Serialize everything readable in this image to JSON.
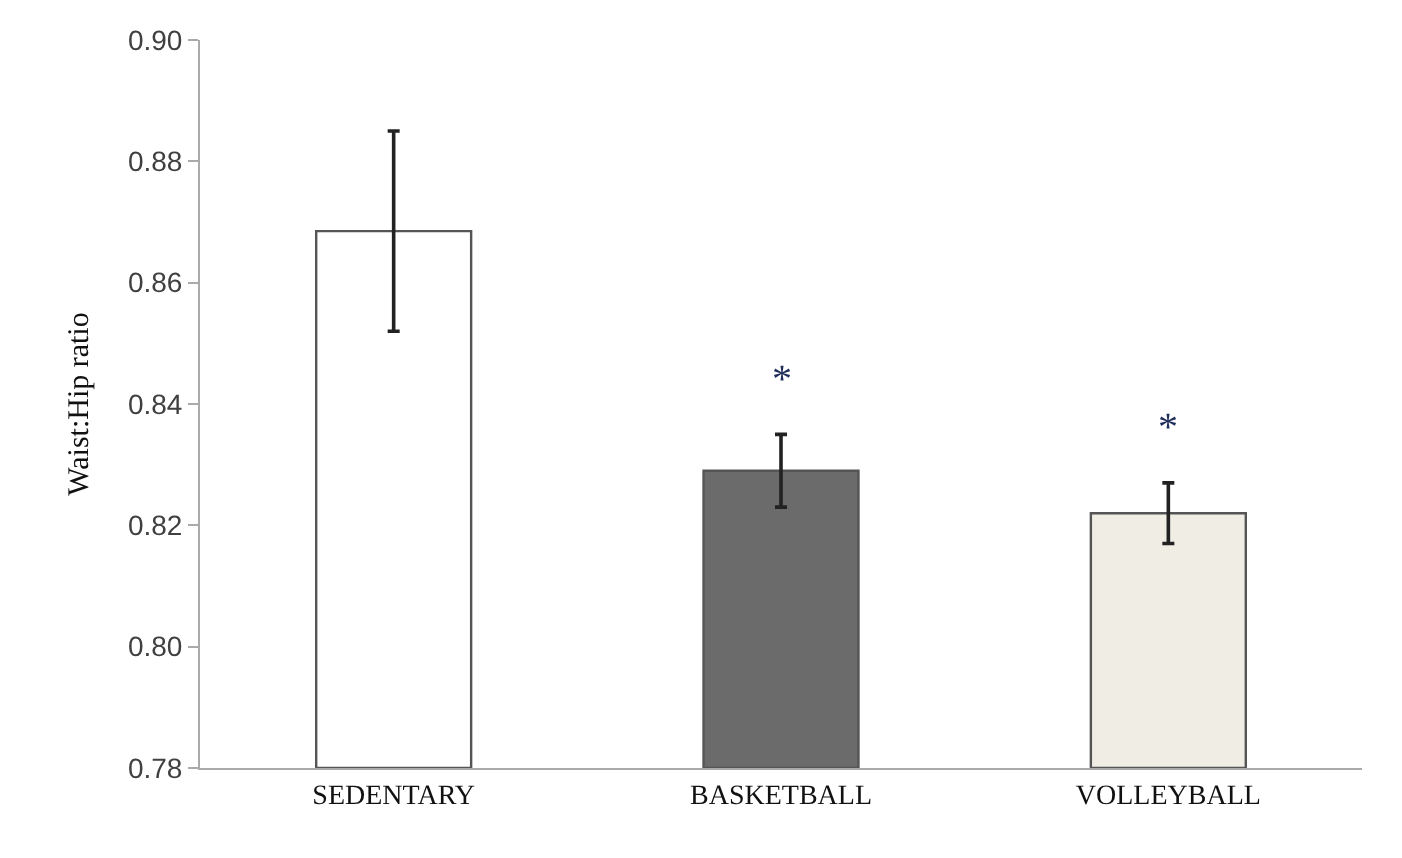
{
  "chart_data": {
    "type": "bar",
    "ylabel": "Waist:Hip ratio",
    "categories": [
      "SEDENTARY",
      "BASKETBALL",
      "VOLLEYBALL"
    ],
    "values": [
      0.8685,
      0.829,
      0.822
    ],
    "colors": [
      "#ffffff",
      "#6b6b6b",
      "#efede4"
    ],
    "errors": [
      [
        0.852,
        0.885
      ],
      [
        0.823,
        0.835
      ],
      [
        0.817,
        0.827
      ]
    ],
    "ylim": [
      0.78,
      0.9
    ],
    "yticks": [
      0.78,
      {
        "value": 0.8,
        "label": "0.80"
      },
      0.82,
      0.84,
      0.86,
      0.88,
      {
        "value": 0.9,
        "label": "0.90"
      }
    ],
    "annotations": [
      "*",
      "*"
    ]
  }
}
